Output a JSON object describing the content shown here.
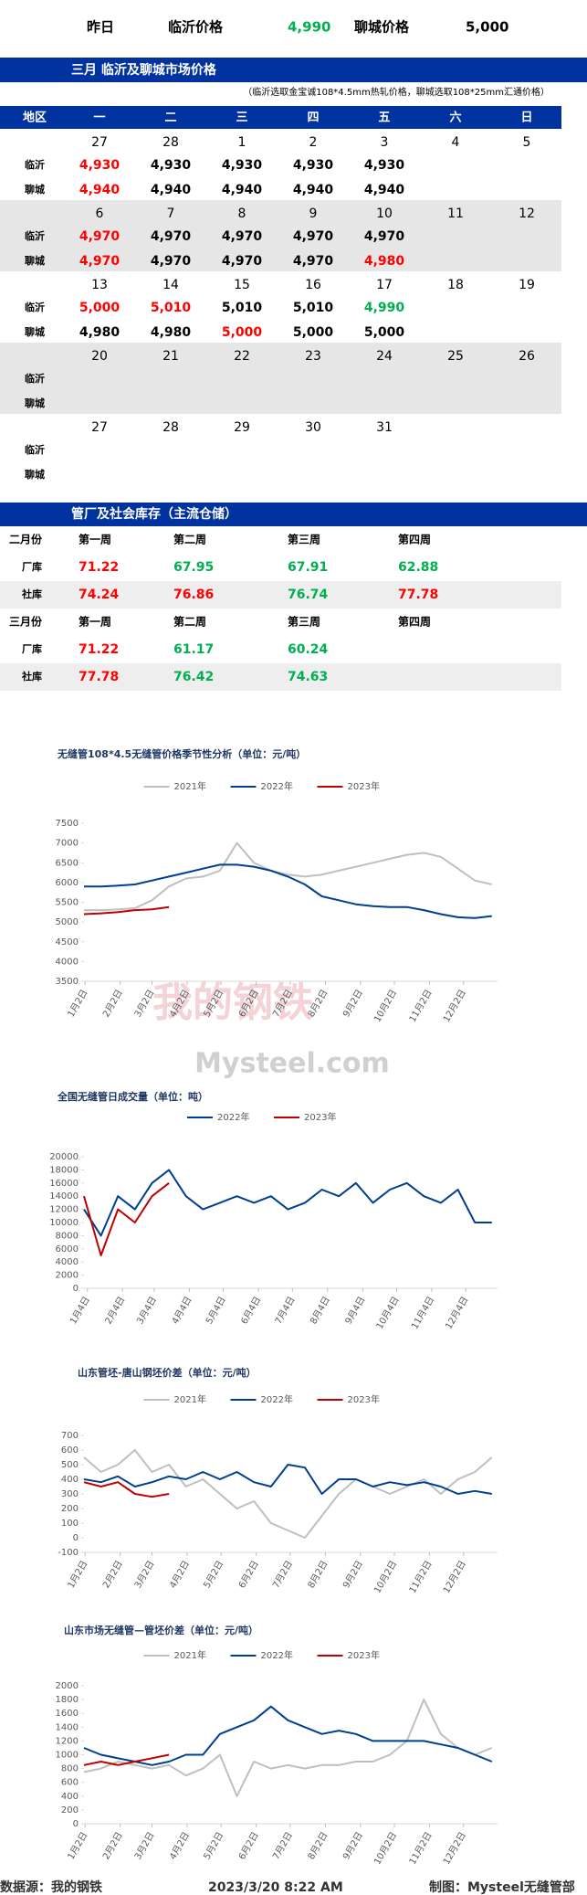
{
  "header": {
    "cells": [
      "昨日",
      "临沂价格",
      "4,990",
      "聊城价格",
      "5,000"
    ]
  },
  "market": {
    "title": "三月  临沂及聊城市场价格",
    "note": "（临沂选取金宝诚108*4.5mm热轧价格，聊城选取108*25mm汇通价格）",
    "columns": [
      "地区",
      "一",
      "二",
      "三",
      "四",
      "五",
      "六",
      "日"
    ],
    "row_labels": [
      "临沂",
      "聊城"
    ],
    "weeks": [
      {
        "dates": [
          "27",
          "28",
          "1",
          "2",
          "3",
          "4",
          "5"
        ],
        "linyi": [
          "4,930",
          "4,930",
          "4,930",
          "4,930",
          "4,930"
        ],
        "linyi_colors": [
          "#ff0000",
          "#000000",
          "#000000",
          "#000000",
          "#000000"
        ],
        "liaocheng": [
          "4,940",
          "4,940",
          "4,940",
          "4,940",
          "4,940"
        ],
        "liaocheng_colors": [
          "#ff0000",
          "#000000",
          "#000000",
          "#000000",
          "#000000"
        ]
      },
      {
        "dates": [
          "6",
          "7",
          "8",
          "9",
          "10",
          "11",
          "12"
        ],
        "linyi": [
          "4,970",
          "4,970",
          "4,970",
          "4,970",
          "4,970"
        ],
        "linyi_colors": [
          "#ff0000",
          "#000000",
          "#000000",
          "#000000",
          "#000000"
        ],
        "liaocheng": [
          "4,970",
          "4,970",
          "4,970",
          "4,970",
          "4,980"
        ],
        "liaocheng_colors": [
          "#ff0000",
          "#000000",
          "#000000",
          "#000000",
          "#ff0000"
        ]
      },
      {
        "dates": [
          "13",
          "14",
          "15",
          "16",
          "17",
          "18",
          "19"
        ],
        "linyi": [
          "5,000",
          "5,010",
          "5,010",
          "5,010",
          "4,990"
        ],
        "linyi_colors": [
          "#ff0000",
          "#ff0000",
          "#000000",
          "#000000",
          "#00b050"
        ],
        "liaocheng": [
          "4,980",
          "4,980",
          "5,000",
          "5,000",
          "5,000"
        ],
        "liaocheng_colors": [
          "#000000",
          "#000000",
          "#ff0000",
          "#000000",
          "#000000"
        ]
      },
      {
        "dates": [
          "20",
          "21",
          "22",
          "23",
          "24",
          "25",
          "26"
        ],
        "linyi": [],
        "linyi_colors": [],
        "liaocheng": [],
        "liaocheng_colors": []
      },
      {
        "dates": [
          "27",
          "28",
          "29",
          "30",
          "31"
        ],
        "linyi": [],
        "linyi_colors": [],
        "liaocheng": [],
        "liaocheng_colors": []
      }
    ]
  },
  "inventory": {
    "title": "管厂及社会库存（主流仓储）",
    "blocks": [
      {
        "month": "二月份",
        "weeks": [
          "第一周",
          "第二周",
          "第三周",
          "第四周"
        ],
        "rows": [
          {
            "label": "厂库",
            "values": [
              "71.22",
              "67.95",
              "67.91",
              "62.88"
            ],
            "colors": [
              "#ff0000",
              "#00b050",
              "#00b050",
              "#00b050"
            ]
          },
          {
            "label": "社库",
            "values": [
              "74.24",
              "76.86",
              "76.74",
              "77.78"
            ],
            "colors": [
              "#ff0000",
              "#ff0000",
              "#00b050",
              "#ff0000"
            ]
          }
        ]
      },
      {
        "month": "三月份",
        "weeks": [
          "第一周",
          "第二周",
          "第三周",
          "第四周"
        ],
        "rows": [
          {
            "label": "厂库",
            "values": [
              "71.22",
              "61.17",
              "60.24"
            ],
            "colors": [
              "#ff0000",
              "#00b050",
              "#00b050"
            ]
          },
          {
            "label": "社库",
            "values": [
              "77.78",
              "76.42",
              "74.63"
            ],
            "colors": [
              "#ff0000",
              "#00b050",
              "#00b050"
            ]
          }
        ]
      }
    ]
  },
  "watermark": [
    "我的钢铁",
    "Mysteel.com"
  ],
  "chart_data": [
    {
      "type": "line",
      "title": "无缝管108*4.5无缝管价格季节性分析（单位：元/吨）",
      "x": [
        0,
        15,
        30,
        45,
        60,
        75,
        90,
        105,
        120,
        135,
        150,
        165,
        180,
        195,
        210,
        225,
        240,
        255,
        270,
        285,
        300,
        315,
        330,
        345,
        360
      ],
      "xlim": [
        0,
        365
      ],
      "xticks": [
        {
          "value": 1,
          "label": "1月2日"
        },
        {
          "value": 32,
          "label": "2月2日"
        },
        {
          "value": 60,
          "label": "3月2日"
        },
        {
          "value": 91,
          "label": "4月2日"
        },
        {
          "value": 121,
          "label": "5月2日"
        },
        {
          "value": 152,
          "label": "6月2日"
        },
        {
          "value": 182,
          "label": "7月2日"
        },
        {
          "value": 213,
          "label": "8月2日"
        },
        {
          "value": 244,
          "label": "9月2日"
        },
        {
          "value": 274,
          "label": "10月2日"
        },
        {
          "value": 305,
          "label": "11月2日"
        },
        {
          "value": 335,
          "label": "12月2日"
        }
      ],
      "ylim": [
        3500,
        7500
      ],
      "yticks": [
        3500,
        4000,
        4500,
        5000,
        5500,
        6000,
        6500,
        7000,
        7500
      ],
      "series": [
        {
          "name": "2021年",
          "color": "#bfbfbf",
          "values": [
            5300,
            5300,
            5320,
            5350,
            5550,
            5900,
            6100,
            6150,
            6300,
            7000,
            6500,
            6300,
            6200,
            6150,
            6200,
            6300,
            6400,
            6500,
            6600,
            6700,
            6750,
            6650,
            6350,
            6050,
            5950
          ]
        },
        {
          "name": "2022年",
          "color": "#003f8f",
          "values": [
            5900,
            5900,
            5920,
            5950,
            6050,
            6150,
            6250,
            6350,
            6450,
            6450,
            6400,
            6300,
            6150,
            5950,
            5650,
            5550,
            5450,
            5400,
            5380,
            5380,
            5300,
            5200,
            5120,
            5100,
            5150
          ]
        },
        {
          "name": "2023年",
          "color": "#c00000",
          "values": [
            5200,
            5220,
            5250,
            5300,
            5320,
            5380,
            null,
            null,
            null,
            null,
            null,
            null,
            null,
            null,
            null,
            null,
            null,
            null,
            null,
            null,
            null,
            null,
            null,
            null,
            null
          ]
        }
      ]
    },
    {
      "type": "line",
      "title": "全国无缝管日成交量（单位：吨）",
      "x": [
        0,
        15,
        30,
        45,
        60,
        75,
        90,
        105,
        120,
        135,
        150,
        165,
        180,
        195,
        210,
        225,
        240,
        255,
        270,
        285,
        300,
        315,
        330,
        345,
        360
      ],
      "xlim": [
        0,
        365
      ],
      "xticks": [
        {
          "value": 3,
          "label": "1月4日"
        },
        {
          "value": 34,
          "label": "2月4日"
        },
        {
          "value": 62,
          "label": "3月4日"
        },
        {
          "value": 93,
          "label": "4月4日"
        },
        {
          "value": 123,
          "label": "5月4日"
        },
        {
          "value": 154,
          "label": "6月4日"
        },
        {
          "value": 184,
          "label": "7月4日"
        },
        {
          "value": 215,
          "label": "8月4日"
        },
        {
          "value": 246,
          "label": "9月4日"
        },
        {
          "value": 276,
          "label": "10月4日"
        },
        {
          "value": 307,
          "label": "11月4日"
        },
        {
          "value": 337,
          "label": "12月4日"
        }
      ],
      "ylim": [
        0,
        20000
      ],
      "yticks": [
        0,
        2000,
        4000,
        6000,
        8000,
        10000,
        12000,
        14000,
        16000,
        18000,
        20000
      ],
      "series": [
        {
          "name": "2022年",
          "color": "#003f8f",
          "values": [
            12000,
            8000,
            14000,
            12000,
            16000,
            18000,
            14000,
            12000,
            13000,
            14000,
            13000,
            14000,
            12000,
            13000,
            15000,
            14000,
            16000,
            13000,
            15000,
            16000,
            14000,
            13000,
            15000,
            10000,
            10000
          ]
        },
        {
          "name": "2023年",
          "color": "#c00000",
          "values": [
            14000,
            5000,
            12000,
            10000,
            14000,
            16000,
            null,
            null,
            null,
            null,
            null,
            null,
            null,
            null,
            null,
            null,
            null,
            null,
            null,
            null,
            null,
            null,
            null,
            null,
            null
          ]
        }
      ]
    },
    {
      "type": "line",
      "title": "山东管坯-唐山钢坯价差（单位：元/吨）",
      "x": [
        0,
        15,
        30,
        45,
        60,
        75,
        90,
        105,
        120,
        135,
        150,
        165,
        180,
        195,
        210,
        225,
        240,
        255,
        270,
        285,
        300,
        315,
        330,
        345,
        360
      ],
      "xlim": [
        0,
        365
      ],
      "xticks": [
        {
          "value": 1,
          "label": "1月2日"
        },
        {
          "value": 32,
          "label": "2月2日"
        },
        {
          "value": 60,
          "label": "3月2日"
        },
        {
          "value": 91,
          "label": "4月2日"
        },
        {
          "value": 121,
          "label": "5月2日"
        },
        {
          "value": 152,
          "label": "6月2日"
        },
        {
          "value": 182,
          "label": "7月2日"
        },
        {
          "value": 213,
          "label": "8月2日"
        },
        {
          "value": 244,
          "label": "9月2日"
        },
        {
          "value": 274,
          "label": "10月2日"
        },
        {
          "value": 305,
          "label": "11月2日"
        },
        {
          "value": 335,
          "label": "12月2日"
        }
      ],
      "ylim": [
        -100,
        700
      ],
      "yticks": [
        -100,
        0,
        100,
        200,
        300,
        400,
        500,
        600,
        700
      ],
      "series": [
        {
          "name": "2021年",
          "color": "#bfbfbf",
          "values": [
            550,
            450,
            500,
            600,
            450,
            500,
            350,
            400,
            300,
            200,
            250,
            100,
            50,
            0,
            150,
            300,
            400,
            350,
            300,
            350,
            400,
            300,
            400,
            450,
            550
          ]
        },
        {
          "name": "2022年",
          "color": "#003f8f",
          "values": [
            400,
            380,
            420,
            350,
            380,
            420,
            400,
            450,
            400,
            450,
            380,
            350,
            500,
            480,
            300,
            400,
            400,
            350,
            380,
            360,
            380,
            350,
            300,
            320,
            300
          ]
        },
        {
          "name": "2023年",
          "color": "#c00000",
          "values": [
            380,
            350,
            380,
            300,
            280,
            300,
            null,
            null,
            null,
            null,
            null,
            null,
            null,
            null,
            null,
            null,
            null,
            null,
            null,
            null,
            null,
            null,
            null,
            null,
            null
          ]
        }
      ]
    },
    {
      "type": "line",
      "title": "山东市场无缝管—管坯价差（单位：元/吨）",
      "x": [
        0,
        15,
        30,
        45,
        60,
        75,
        90,
        105,
        120,
        135,
        150,
        165,
        180,
        195,
        210,
        225,
        240,
        255,
        270,
        285,
        300,
        315,
        330,
        345,
        360
      ],
      "xlim": [
        0,
        365
      ],
      "xticks": [
        {
          "value": 1,
          "label": "1月2日"
        },
        {
          "value": 32,
          "label": "2月2日"
        },
        {
          "value": 60,
          "label": "3月2日"
        },
        {
          "value": 91,
          "label": "4月2日"
        },
        {
          "value": 121,
          "label": "5月2日"
        },
        {
          "value": 152,
          "label": "6月2日"
        },
        {
          "value": 182,
          "label": "7月2日"
        },
        {
          "value": 213,
          "label": "8月2日"
        },
        {
          "value": 244,
          "label": "9月2日"
        },
        {
          "value": 274,
          "label": "10月2日"
        },
        {
          "value": 305,
          "label": "11月2日"
        },
        {
          "value": 335,
          "label": "12月2日"
        }
      ],
      "ylim": [
        0,
        2000
      ],
      "yticks": [
        0,
        200,
        400,
        600,
        800,
        1000,
        1200,
        1400,
        1600,
        1800,
        2000
      ],
      "series": [
        {
          "name": "2021年",
          "color": "#bfbfbf",
          "values": [
            750,
            800,
            900,
            850,
            800,
            850,
            700,
            800,
            1000,
            400,
            900,
            800,
            850,
            800,
            850,
            850,
            900,
            900,
            1000,
            1200,
            1800,
            1300,
            1100,
            1000,
            1100
          ]
        },
        {
          "name": "2022年",
          "color": "#003f8f",
          "values": [
            1100,
            1000,
            950,
            900,
            850,
            900,
            1000,
            1000,
            1300,
            1400,
            1500,
            1700,
            1500,
            1400,
            1300,
            1350,
            1300,
            1200,
            1200,
            1200,
            1200,
            1150,
            1100,
            1000,
            900
          ]
        },
        {
          "name": "2023年",
          "color": "#c00000",
          "values": [
            850,
            900,
            850,
            900,
            950,
            1000,
            null,
            null,
            null,
            null,
            null,
            null,
            null,
            null,
            null,
            null,
            null,
            null,
            null,
            null,
            null,
            null,
            null,
            null,
            null
          ]
        }
      ]
    }
  ],
  "footer": {
    "source": "数据源：我的钢铁",
    "time": "2023/3/20 8:22 AM",
    "author": "制图：Mysteel无缝管部"
  }
}
